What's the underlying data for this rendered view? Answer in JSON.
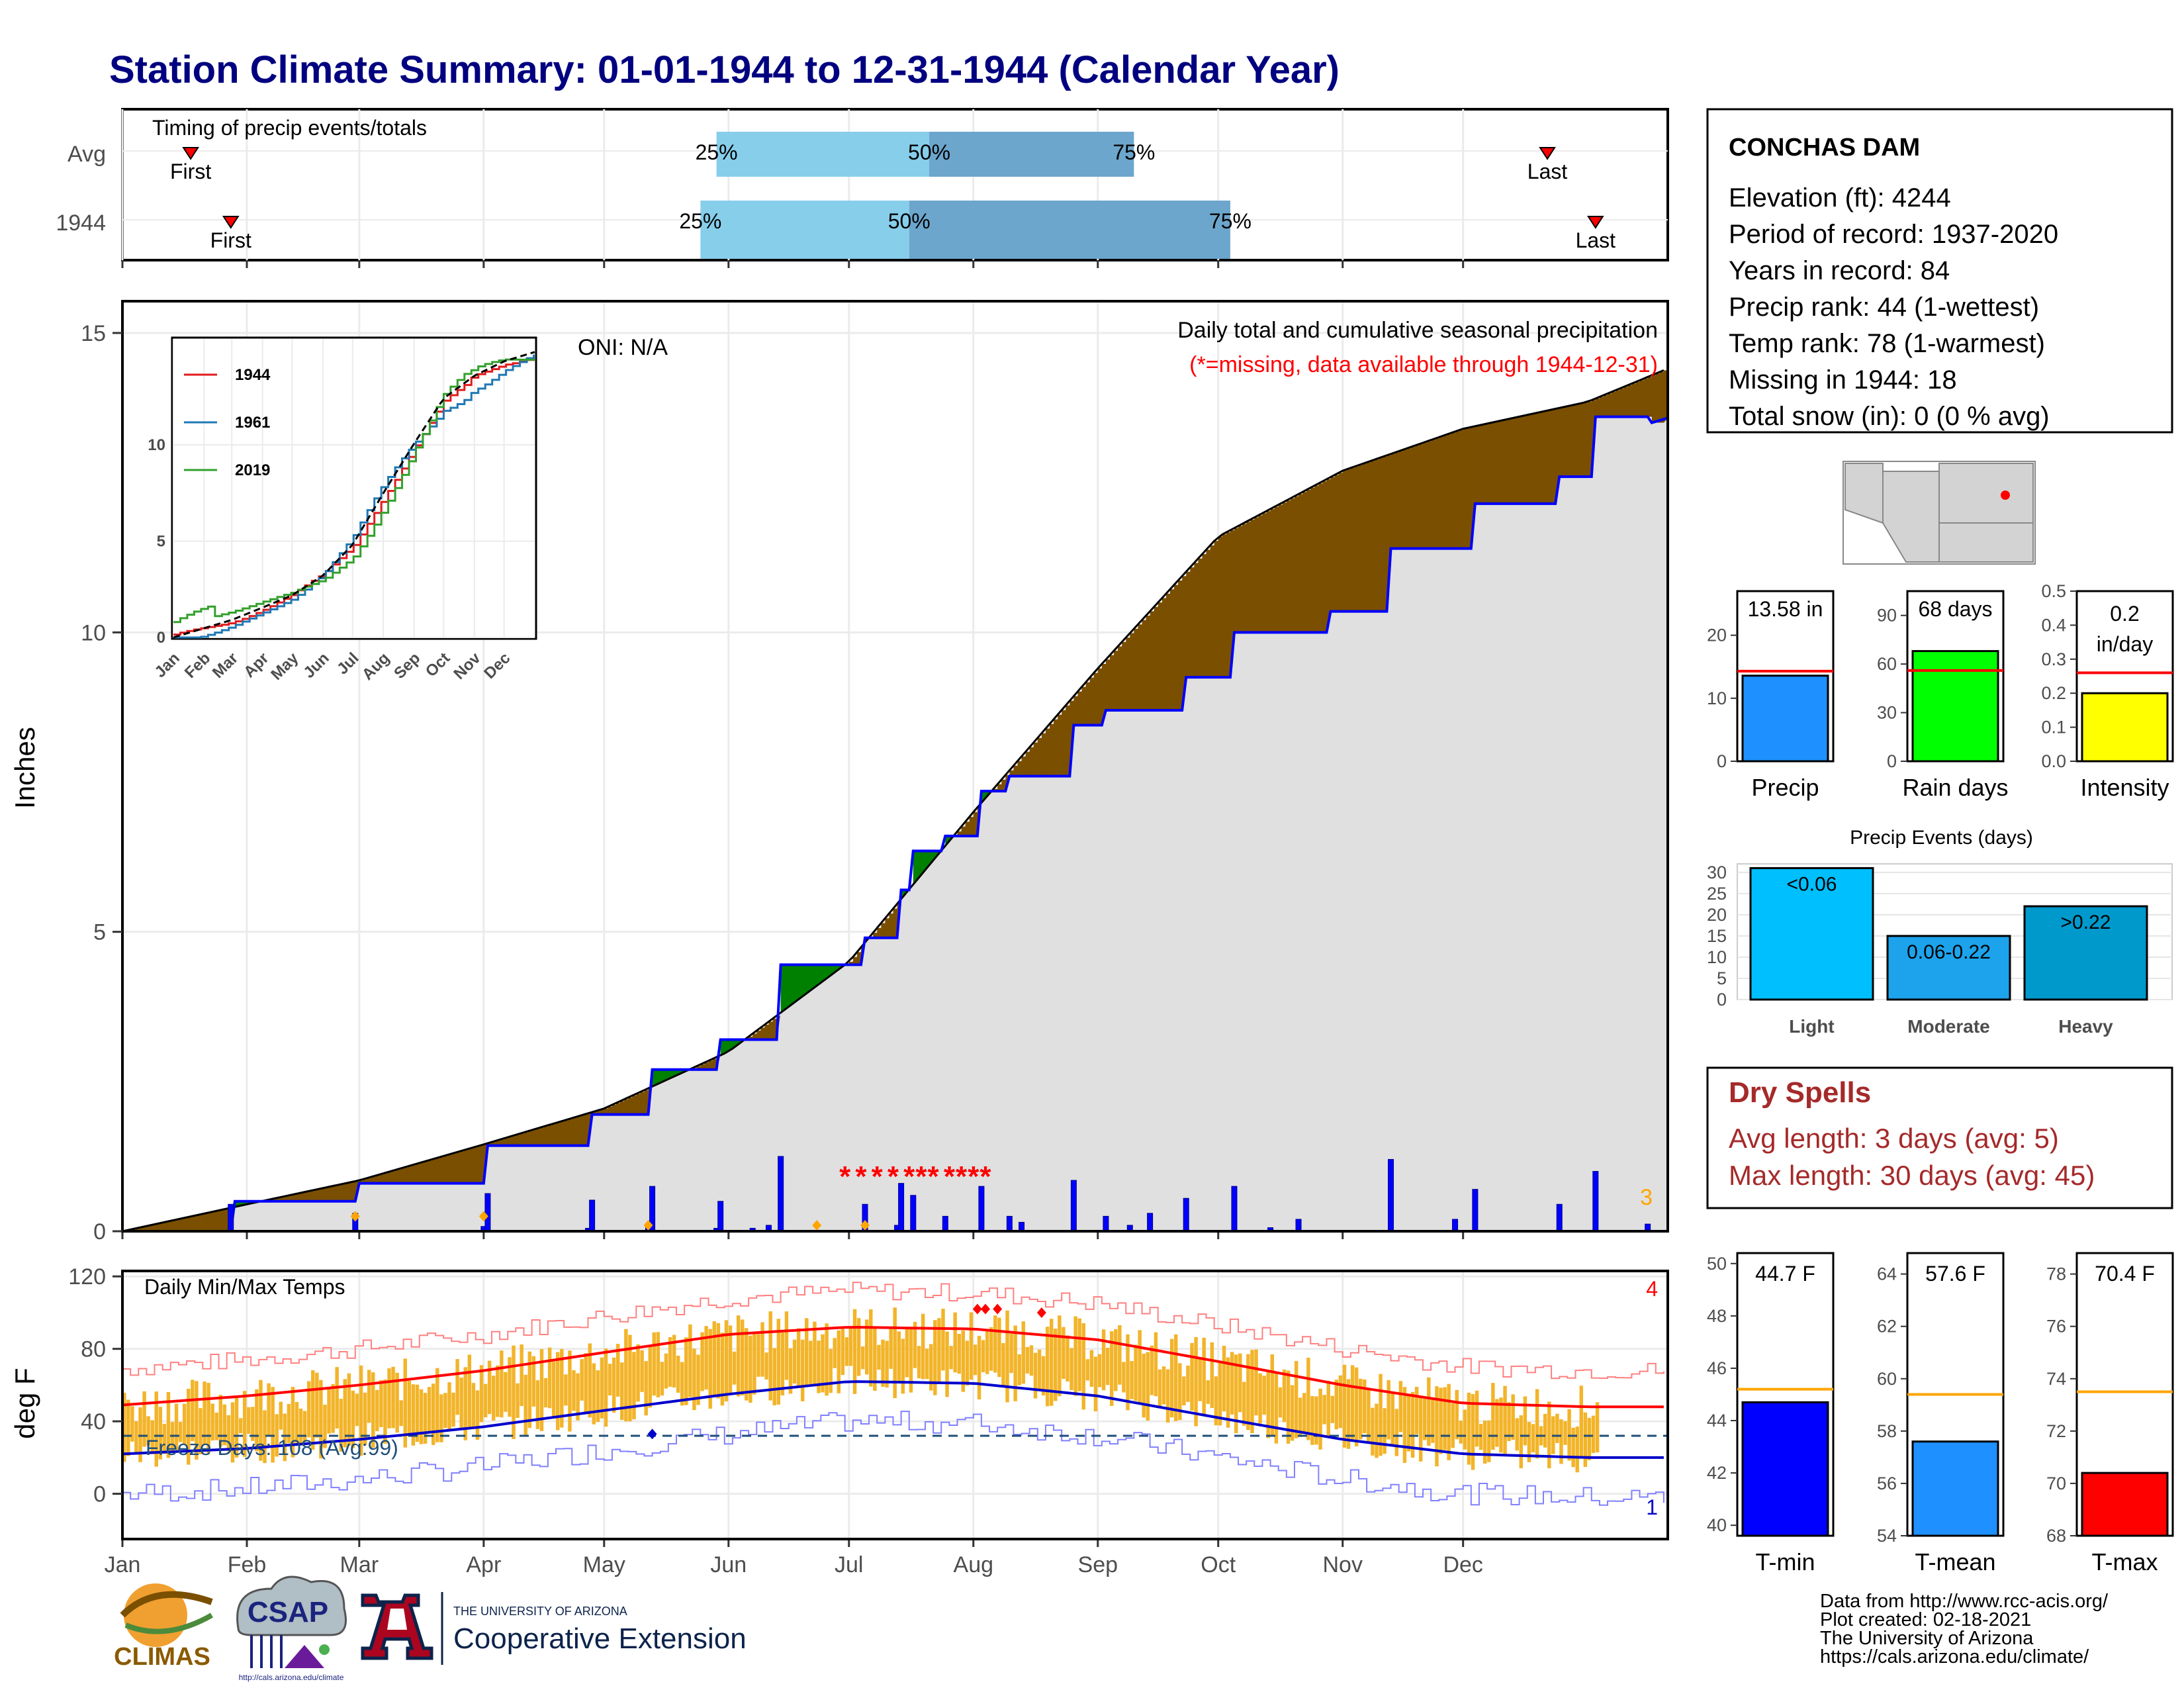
{
  "title": "Station Climate Summary: 01-01-1944 to 12-31-1944 (Calendar Year)",
  "colors": {
    "title": "#000080",
    "brown": "#7a4f00",
    "green": "#008000",
    "cum_blue": "#0000ff",
    "light_blue": "#87ceeb",
    "mid_blue": "#6ca6cd",
    "gold": "#f2b42a",
    "red": "#ff0000",
    "dry_red": "#a52a2a",
    "precip_bar": "#1e90ff",
    "rain_bar": "#00ff00",
    "intensity_bar": "#ffff00",
    "light_events": "#00bfff",
    "mod_events": "#1ca3ec",
    "heavy_events": "#0099cc",
    "tmin_bar": "#0000ff",
    "tmean_bar": "#1e90ff",
    "tmax_bar": "#ff0000",
    "avg_line": "#ffa500"
  },
  "station": {
    "name": "CONCHAS DAM",
    "lines": [
      "Elevation (ft): 4244",
      "Period of record: 1937-2020",
      "Years in record: 84",
      "Precip rank: 44 (1-wettest)",
      "Temp rank: 78 (1-warmest)",
      "Missing in 1944: 18",
      "Total snow (in): 0 (0 % avg)"
    ]
  },
  "months": [
    "Jan",
    "Feb",
    "Mar",
    "Apr",
    "May",
    "Jun",
    "Jul",
    "Aug",
    "Sep",
    "Oct",
    "Nov",
    "Dec"
  ],
  "inset_months": [
    "Jan",
    "Feb",
    "Mar",
    "Apr",
    "May",
    "Jun",
    "Jul",
    "Aug",
    "Sep",
    "Oct",
    "Nov",
    "Dec"
  ],
  "chart_data": [
    {
      "id": "timing",
      "type": "bar",
      "title": "Timing of precip events/totals",
      "rows": [
        {
          "label": "Avg",
          "first_day": 17,
          "last_day": 355,
          "p25_day": 148,
          "p50_day": 201,
          "p75_day": 252,
          "first_label": "First",
          "last_label": "Last"
        },
        {
          "label": "1944",
          "first_day": 27,
          "last_day": 367,
          "p25_day": 144,
          "p50_day": 196,
          "p75_day": 276,
          "first_label": "First",
          "last_label": "Last"
        }
      ],
      "pct_labels": [
        "25%",
        "50%",
        "75%"
      ]
    },
    {
      "id": "precip",
      "type": "area",
      "ylabel": "Inches",
      "ylim": [
        0,
        15
      ],
      "yticks": [
        0,
        5,
        10,
        15
      ],
      "annotation_main": "Daily total and cumulative seasonal precipitation",
      "annotation_missing": "(*=missing, data available through 1944-12-31)",
      "oni": "ONI: N/A",
      "top_right_count": "3",
      "avg_cumulative": [
        [
          0,
          0
        ],
        [
          31,
          0.45
        ],
        [
          59,
          0.85
        ],
        [
          90,
          1.45
        ],
        [
          120,
          2.05
        ],
        [
          151,
          3.0
        ],
        [
          181,
          4.5
        ],
        [
          212,
          7.0
        ],
        [
          243,
          9.4
        ],
        [
          273,
          11.6
        ],
        [
          304,
          12.7
        ],
        [
          334,
          13.4
        ],
        [
          365,
          13.85
        ]
      ],
      "cumulative_1944": [
        [
          0,
          0
        ],
        [
          27,
          0
        ],
        [
          28,
          0.5
        ],
        [
          58,
          0.5
        ],
        [
          59,
          0.8
        ],
        [
          90,
          0.8
        ],
        [
          91,
          1.43
        ],
        [
          116,
          1.43
        ],
        [
          117,
          1.95
        ],
        [
          131,
          1.95
        ],
        [
          132,
          2.7
        ],
        [
          148,
          2.7
        ],
        [
          149,
          3.2
        ],
        [
          163,
          3.2
        ],
        [
          164,
          4.45
        ],
        [
          172,
          4.45
        ],
        [
          184,
          4.45
        ],
        [
          185,
          4.9
        ],
        [
          193,
          4.9
        ],
        [
          194,
          5.7
        ],
        [
          196,
          5.7
        ],
        [
          197,
          6.35
        ],
        [
          204,
          6.35
        ],
        [
          205,
          6.6
        ],
        [
          213,
          6.6
        ],
        [
          214,
          7.35
        ],
        [
          220,
          7.35
        ],
        [
          221,
          7.6
        ],
        [
          236,
          7.6
        ],
        [
          237,
          8.45
        ],
        [
          244,
          8.45
        ],
        [
          245,
          8.7
        ],
        [
          264,
          8.7
        ],
        [
          265,
          9.25
        ],
        [
          276,
          9.25
        ],
        [
          277,
          10.0
        ],
        [
          300,
          10.0
        ],
        [
          301,
          10.35
        ],
        [
          315,
          10.35
        ],
        [
          316,
          11.4
        ],
        [
          336,
          11.4
        ],
        [
          337,
          12.15
        ],
        [
          357,
          12.15
        ],
        [
          358,
          12.6
        ],
        [
          366,
          12.6
        ],
        [
          367,
          13.6
        ],
        [
          380,
          13.6
        ],
        [
          381,
          13.5
        ],
        [
          385,
          13.58
        ]
      ],
      "daily_bars": [
        [
          27,
          0.45
        ],
        [
          58,
          0.3
        ],
        [
          90,
          0.08
        ],
        [
          91,
          0.63
        ],
        [
          116,
          0.05
        ],
        [
          117,
          0.52
        ],
        [
          131,
          0.08
        ],
        [
          132,
          0.75
        ],
        [
          148,
          0.05
        ],
        [
          149,
          0.5
        ],
        [
          157,
          0.05
        ],
        [
          161,
          0.1
        ],
        [
          164,
          1.25
        ],
        [
          185,
          0.45
        ],
        [
          193,
          0.1
        ],
        [
          194,
          0.8
        ],
        [
          197,
          0.6
        ],
        [
          205,
          0.25
        ],
        [
          214,
          0.75
        ],
        [
          221,
          0.25
        ],
        [
          224,
          0.15
        ],
        [
          237,
          0.85
        ],
        [
          245,
          0.25
        ],
        [
          251,
          0.1
        ],
        [
          256,
          0.3
        ],
        [
          265,
          0.55
        ],
        [
          277,
          0.75
        ],
        [
          286,
          0.06
        ],
        [
          293,
          0.2
        ],
        [
          316,
          1.2
        ],
        [
          332,
          0.2
        ],
        [
          337,
          0.7
        ],
        [
          358,
          0.45
        ],
        [
          367,
          1.0
        ],
        [
          380,
          0.12
        ]
      ],
      "missing_days": [
        180,
        184,
        188,
        192,
        196,
        199,
        202,
        206,
        209,
        212,
        215
      ],
      "sparse_markers": [
        [
          58,
          0.25
        ],
        [
          90,
          0.25
        ],
        [
          131,
          0.1
        ],
        [
          173,
          0.1
        ],
        [
          185,
          0.1
        ]
      ]
    },
    {
      "id": "inset",
      "type": "line",
      "ylim": [
        0,
        15
      ],
      "yticks": [
        0,
        5,
        10
      ],
      "series": [
        {
          "name": "1944",
          "color": "#e31a1c"
        },
        {
          "name": "1961",
          "color": "#1f78b4"
        },
        {
          "name": "2019",
          "color": "#33a02c"
        }
      ],
      "note": "inset of cumulative series for selected years"
    },
    {
      "id": "temps",
      "type": "bar",
      "title": "Daily Min/Max Temps",
      "ylabel": "deg F",
      "ylim": [
        -25,
        120
      ],
      "yticks": [
        0,
        40,
        80,
        120
      ],
      "freeze_label": "Freeze Days: 108 (Avg:99)",
      "freeze_line": 32,
      "top_right_count": "4",
      "bottom_right_count": "1",
      "avg_max": [
        [
          0,
          49
        ],
        [
          31,
          54
        ],
        [
          59,
          60
        ],
        [
          90,
          68
        ],
        [
          120,
          78
        ],
        [
          151,
          88
        ],
        [
          181,
          92
        ],
        [
          212,
          91
        ],
        [
          243,
          85
        ],
        [
          273,
          73
        ],
        [
          304,
          60
        ],
        [
          334,
          50
        ],
        [
          365,
          48
        ]
      ],
      "avg_min": [
        [
          0,
          22
        ],
        [
          31,
          25
        ],
        [
          59,
          30
        ],
        [
          90,
          37
        ],
        [
          120,
          46
        ],
        [
          151,
          55
        ],
        [
          181,
          62
        ],
        [
          212,
          61
        ],
        [
          243,
          54
        ],
        [
          273,
          42
        ],
        [
          304,
          30
        ],
        [
          334,
          22
        ],
        [
          365,
          20
        ]
      ]
    },
    {
      "id": "summary_precip",
      "type": "bar",
      "panels": [
        {
          "label": "Precip",
          "value": 13.58,
          "avg": 14.3,
          "value_label": "13.58 in",
          "ylim": [
            0,
            27
          ],
          "yticks": [
            0,
            10,
            20
          ]
        },
        {
          "label": "Rain days",
          "value": 68,
          "avg": 56,
          "value_label": "68 days",
          "ylim": [
            0,
            105
          ],
          "yticks": [
            0,
            30,
            60,
            90
          ]
        },
        {
          "label": "Intensity",
          "value": 0.2,
          "avg": 0.26,
          "value_label_line1": "0.2",
          "value_label_line2": "in/day",
          "ylim": [
            0,
            0.5
          ],
          "yticks": [
            0.0,
            0.1,
            0.2,
            0.3,
            0.4,
            0.5
          ]
        }
      ]
    },
    {
      "id": "precip_events",
      "type": "bar",
      "title": "Precip Events (days)",
      "categories": [
        "Light",
        "Moderate",
        "Heavy"
      ],
      "values": [
        31,
        15,
        22
      ],
      "bar_labels": [
        "<0.06",
        "0.06-0.22",
        ">0.22"
      ],
      "ylim": [
        0,
        32
      ],
      "yticks": [
        0,
        5,
        10,
        15,
        20,
        25,
        30
      ]
    },
    {
      "id": "summary_temps",
      "type": "bar",
      "panels": [
        {
          "label": "T-min",
          "value": 44.7,
          "avg": 45.2,
          "value_label": "44.7 F",
          "ylim": [
            39.6,
            50.4
          ],
          "yticks": [
            40,
            42,
            44,
            46,
            48,
            50
          ]
        },
        {
          "label": "T-mean",
          "value": 57.6,
          "avg": 59.4,
          "value_label": "57.6 F",
          "ylim": [
            54,
            64.8
          ],
          "yticks": [
            54,
            56,
            58,
            60,
            62,
            64
          ]
        },
        {
          "label": "T-max",
          "value": 70.4,
          "avg": 73.5,
          "value_label": "70.4 F",
          "ylim": [
            68,
            78.8
          ],
          "yticks": [
            68,
            70,
            72,
            74,
            76,
            78
          ]
        }
      ]
    }
  ],
  "dry_spells": {
    "title": "Dry Spells",
    "avg_line": "Avg length: 3 days (avg: 5)",
    "max_line": "Max length: 30 days (avg: 45)"
  },
  "footer": {
    "lines": [
      "Data from http://www.rcc-acis.org/",
      "Plot created: 02-18-2021",
      "The University of Arizona",
      "https://cals.arizona.edu/climate/"
    ],
    "climas": "CLIMAS",
    "csap": "CSAP",
    "csap_url": "http://cals.arizona.edu/climate",
    "ua_small": "THE UNIVERSITY OF ARIZONA",
    "ua_big": "Cooperative Extension"
  }
}
